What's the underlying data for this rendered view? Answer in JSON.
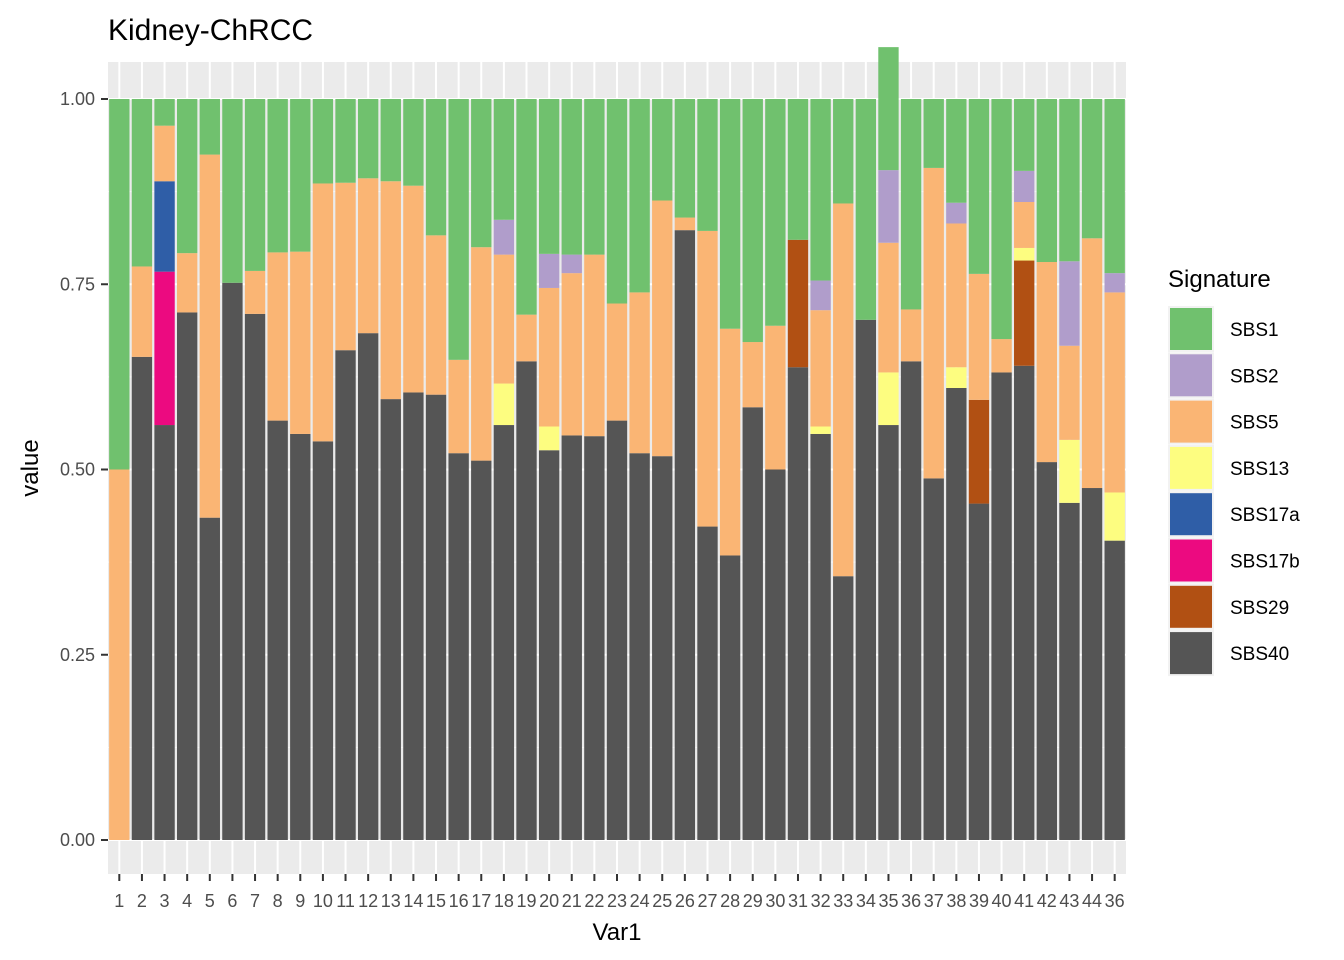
{
  "chart_data": {
    "type": "bar",
    "stacked": true,
    "title": "Kidney-ChRCC",
    "xlabel": "Var1",
    "ylabel": "value",
    "ylim": [
      0,
      1
    ],
    "yticks": [
      "0.00",
      "0.25",
      "0.50",
      "0.75",
      "1.00"
    ],
    "grid": true,
    "legend_position": "right",
    "legend_title": "Signature",
    "x_tick_labels_overlapping": true,
    "visible_x_tick_fragment": "36",
    "categories": [
      "1",
      "2",
      "3",
      "4",
      "5",
      "6",
      "7",
      "8",
      "9",
      "10",
      "11",
      "12",
      "13",
      "14",
      "15",
      "16",
      "17",
      "18",
      "19",
      "20",
      "21",
      "22",
      "23",
      "24",
      "25",
      "26",
      "27",
      "28",
      "29",
      "30",
      "31",
      "32",
      "33",
      "34",
      "35",
      "36",
      "37",
      "38",
      "39",
      "40",
      "41",
      "42",
      "43",
      "44",
      "45"
    ],
    "series": [
      {
        "name": "SBS40",
        "color": "#555555",
        "values": [
          0.0,
          0.652,
          0.56,
          0.712,
          0.435,
          0.752,
          0.71,
          0.566,
          0.548,
          0.538,
          0.661,
          0.684,
          0.595,
          0.604,
          0.601,
          0.522,
          0.512,
          0.56,
          0.646,
          0.526,
          0.546,
          0.545,
          0.566,
          0.522,
          0.518,
          0.823,
          0.423,
          0.384,
          0.584,
          0.5,
          0.638,
          0.548,
          0.356,
          0.702,
          0.56,
          0.646,
          0.488,
          0.61,
          0.454,
          0.631,
          0.64,
          0.51,
          0.455,
          0.475,
          0.404
        ]
      },
      {
        "name": "SBS29",
        "color": "#B15013",
        "values": [
          0,
          0,
          0,
          0,
          0,
          0,
          0,
          0,
          0,
          0,
          0,
          0,
          0,
          0,
          0,
          0,
          0,
          0,
          0,
          0,
          0,
          0,
          0,
          0,
          0,
          0,
          0,
          0,
          0,
          0,
          0.172,
          0,
          0,
          0,
          0,
          0,
          0,
          0,
          0.14,
          0,
          0.142,
          0,
          0,
          0,
          0
        ]
      },
      {
        "name": "SBS17b",
        "color": "#EC0A80",
        "values": [
          0,
          0,
          0.207,
          0,
          0,
          0,
          0,
          0,
          0,
          0,
          0,
          0,
          0,
          0,
          0,
          0,
          0,
          0,
          0,
          0,
          0,
          0,
          0,
          0,
          0,
          0,
          0,
          0,
          0,
          0,
          0,
          0,
          0,
          0,
          0,
          0,
          0,
          0,
          0,
          0,
          0,
          0,
          0,
          0,
          0
        ]
      },
      {
        "name": "SBS17a",
        "color": "#2F5EA7",
        "values": [
          0,
          0,
          0.122,
          0,
          0,
          0,
          0,
          0,
          0,
          0,
          0,
          0,
          0,
          0,
          0,
          0,
          0,
          0,
          0,
          0,
          0,
          0,
          0,
          0,
          0,
          0,
          0,
          0,
          0,
          0,
          0,
          0,
          0,
          0,
          0,
          0,
          0,
          0,
          0,
          0,
          0,
          0,
          0,
          0,
          0
        ]
      },
      {
        "name": "SBS13",
        "color": "#FDFD80",
        "values": [
          0,
          0,
          0,
          0,
          0,
          0,
          0,
          0,
          0,
          0,
          0,
          0,
          0,
          0,
          0,
          0,
          0,
          0.056,
          0,
          0.032,
          0,
          0,
          0,
          0,
          0,
          0,
          0,
          0,
          0,
          0,
          0,
          0.01,
          0,
          0,
          0.071,
          0,
          0,
          0.028,
          0,
          0,
          0.017,
          0,
          0.085,
          0,
          0.065
        ]
      },
      {
        "name": "SBS5",
        "color": "#FAB574",
        "values": [
          0.5,
          0.122,
          0.075,
          0.08,
          0.49,
          0,
          0.058,
          0.227,
          0.246,
          0.348,
          0.226,
          0.209,
          0.294,
          0.279,
          0.215,
          0.126,
          0.288,
          0.174,
          0.063,
          0.187,
          0.219,
          0.245,
          0.158,
          0.217,
          0.345,
          0.017,
          0.399,
          0.306,
          0.088,
          0.194,
          0,
          0.157,
          0.503,
          0,
          0.175,
          0.07,
          0.419,
          0.194,
          0.17,
          0.045,
          0.062,
          0.27,
          0.127,
          0.337,
          0.27
        ]
      },
      {
        "name": "SBS2",
        "color": "#B09DCB",
        "values": [
          0,
          0,
          0,
          0,
          0,
          0,
          0,
          0,
          0,
          0,
          0,
          0,
          0,
          0,
          0,
          0,
          0,
          0.047,
          0,
          0.046,
          0.025,
          0,
          0,
          0,
          0,
          0,
          0,
          0,
          0,
          0,
          0,
          0.04,
          0,
          0,
          0.098,
          0,
          0,
          0.028,
          0,
          0,
          0.042,
          0,
          0.114,
          0,
          0.026
        ]
      },
      {
        "name": "SBS1",
        "color": "#70C16E",
        "values": [
          0.5,
          0.226,
          0.036,
          0.208,
          0.075,
          0.248,
          0.232,
          0.207,
          0.206,
          0.114,
          0.113,
          0.107,
          0.111,
          0.117,
          0.184,
          0.352,
          0.2,
          0.163,
          0.291,
          0.209,
          0.21,
          0.21,
          0.276,
          0.261,
          0.137,
          0.16,
          0.178,
          0.31,
          0.328,
          0.306,
          0.19,
          0.245,
          0.141,
          0.298,
          0.166,
          0.284,
          0.093,
          0.14,
          0.236,
          0.324,
          0.097,
          0.22,
          0.219,
          0.188,
          0.235
        ]
      }
    ]
  },
  "legend": {
    "items": [
      {
        "name": "SBS1",
        "color": "#70C16E"
      },
      {
        "name": "SBS2",
        "color": "#B09DCB"
      },
      {
        "name": "SBS5",
        "color": "#FAB574"
      },
      {
        "name": "SBS13",
        "color": "#FDFD80"
      },
      {
        "name": "SBS17a",
        "color": "#2F5EA7"
      },
      {
        "name": "SBS17b",
        "color": "#EC0A80"
      },
      {
        "name": "SBS29",
        "color": "#B15013"
      },
      {
        "name": "SBS40",
        "color": "#555555"
      }
    ]
  }
}
